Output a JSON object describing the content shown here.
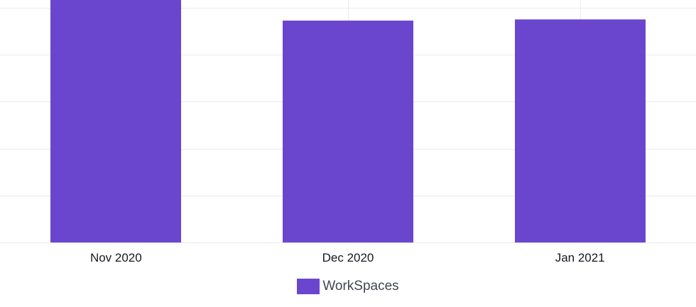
{
  "chart_data": {
    "type": "bar",
    "categories": [
      "Nov 2020",
      "Dec 2020",
      "Jan 2021"
    ],
    "series": [
      {
        "name": "WorkSpaces",
        "color": "#6a46cf",
        "values": [
          1.045,
          0.945,
          0.95
        ]
      }
    ],
    "ylim": [
      0,
      1.075
    ],
    "y_gridlines": [
      0,
      0.2,
      0.4,
      0.6,
      0.8,
      1.0
    ],
    "grid": true,
    "legend_position": "bottom-center"
  },
  "legend": {
    "items": [
      {
        "label": "WorkSpaces",
        "color": "#6a46cf"
      }
    ]
  }
}
